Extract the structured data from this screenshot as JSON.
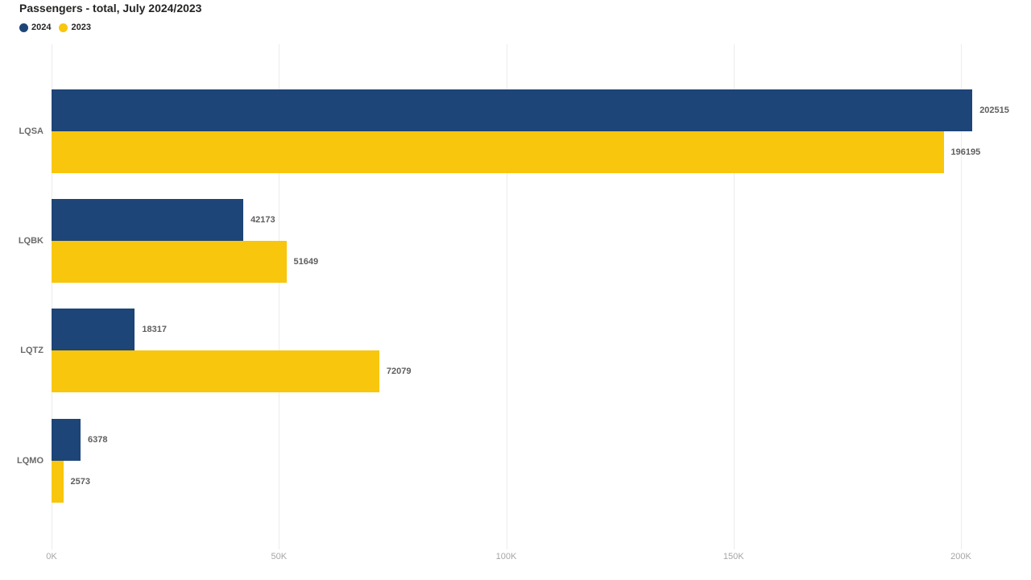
{
  "title": "Passengers - total, July 2024/2023",
  "legend": [
    {
      "label": "2024",
      "color": "#1D4577"
    },
    {
      "label": "2023",
      "color": "#F8C60C"
    }
  ],
  "chart_data": {
    "type": "bar",
    "orientation": "horizontal",
    "title": "Passengers - total, July 2024/2023",
    "categories": [
      "LQSA",
      "LQBK",
      "LQTZ",
      "LQMO"
    ],
    "series": [
      {
        "name": "2024",
        "color": "#1D4577",
        "values": [
          202515,
          42173,
          18317,
          6378
        ],
        "labels": [
          "202515",
          "42173",
          "18317",
          "6378"
        ]
      },
      {
        "name": "2023",
        "color": "#F8C60C",
        "values": [
          196195,
          51649,
          72079,
          2573
        ],
        "labels": [
          "196195",
          "51649",
          "72079",
          "2573"
        ]
      }
    ],
    "x_ticks": [
      {
        "value": 0,
        "label": "0K"
      },
      {
        "value": 50000,
        "label": "50K"
      },
      {
        "value": 100000,
        "label": "100K"
      },
      {
        "value": 150000,
        "label": "150K"
      },
      {
        "value": 200000,
        "label": "200K"
      }
    ],
    "xlim": [
      0,
      200000
    ],
    "grid": true,
    "legend_position": "top-left",
    "value_labels": true
  }
}
